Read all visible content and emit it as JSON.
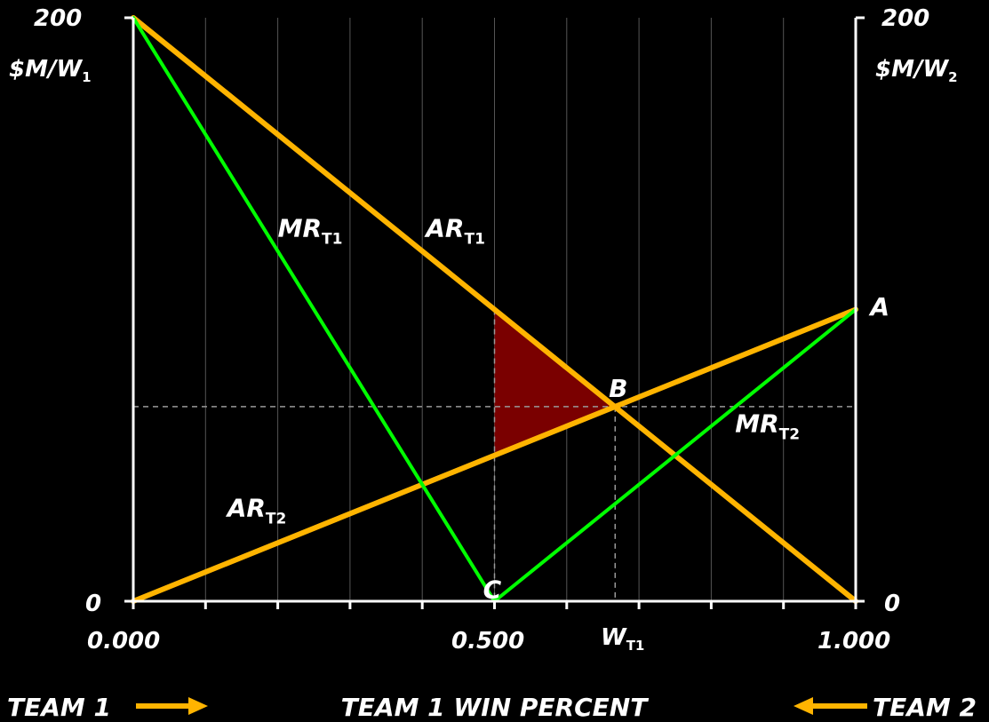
{
  "colors": {
    "background": "#000000",
    "axis": "#ffffff",
    "grid": "#555555",
    "ar_line": "#ffb400",
    "mr_line": "#00ff00",
    "shade": "#7a0000",
    "guide": "#999999",
    "arrow": "#ffb400"
  },
  "chart_data": {
    "type": "line",
    "xlim": [
      0,
      1
    ],
    "ylim": [
      0,
      200
    ],
    "x_ticks": [
      0,
      0.1,
      0.2,
      0.3,
      0.4,
      0.5,
      0.6,
      0.7,
      0.8,
      0.9,
      1.0
    ],
    "x_tick_labels": [
      {
        "x": 0,
        "text": "0.000"
      },
      {
        "x": 0.5,
        "text": "0.500"
      },
      {
        "x": 1,
        "text": "1.000"
      }
    ],
    "grid": "vertical",
    "y_axis_left": {
      "top_label": "200",
      "bottom_label": "0",
      "unit": "$M/W",
      "unit_sub": "1"
    },
    "y_axis_right": {
      "top_label": "200",
      "bottom_label": "0",
      "unit": "$M/W",
      "unit_sub": "2"
    },
    "series": [
      {
        "key": "ar_t1",
        "kind": "ar",
        "points": [
          [
            0,
            200
          ],
          [
            1,
            0
          ]
        ]
      },
      {
        "key": "ar_t2",
        "kind": "ar",
        "points": [
          [
            0,
            0
          ],
          [
            1,
            100
          ]
        ]
      },
      {
        "key": "mr_t1",
        "kind": "mr",
        "points": [
          [
            0,
            200
          ],
          [
            0.5,
            0
          ]
        ]
      },
      {
        "key": "mr_t2",
        "kind": "mr",
        "points": [
          [
            0.5,
            0
          ],
          [
            1,
            100
          ]
        ]
      }
    ],
    "shaded_region": [
      [
        0.5,
        100
      ],
      [
        0.667,
        66.7
      ],
      [
        0.5,
        50
      ]
    ],
    "equilibrium": {
      "x": 0.667,
      "y": 66.7
    },
    "line_labels": [
      {
        "key": "mr_t1",
        "main": "MR",
        "sub": "T1",
        "x": 0.2,
        "y": 125
      },
      {
        "key": "ar_t1",
        "main": "AR",
        "sub": "T1",
        "x": 0.405,
        "y": 125
      },
      {
        "key": "mr_t2",
        "main": "MR",
        "sub": "T2",
        "x": 0.833,
        "y": 58
      },
      {
        "key": "ar_t2",
        "main": "AR",
        "sub": "T2",
        "x": 0.13,
        "y": 29
      }
    ],
    "point_labels": [
      {
        "key": "A",
        "text": "A",
        "x": 1.03,
        "y": 98
      },
      {
        "key": "B",
        "text": "B",
        "x": 0.668,
        "y": 70
      },
      {
        "key": "C",
        "text": "C",
        "x": 0.494,
        "y": 1
      }
    ],
    "wt1_label": {
      "main": "W",
      "sub": "T1"
    },
    "xlabel": "TEAM 1 WIN PERCENT",
    "team_left": "TEAM 1",
    "team_right": "TEAM 2"
  }
}
